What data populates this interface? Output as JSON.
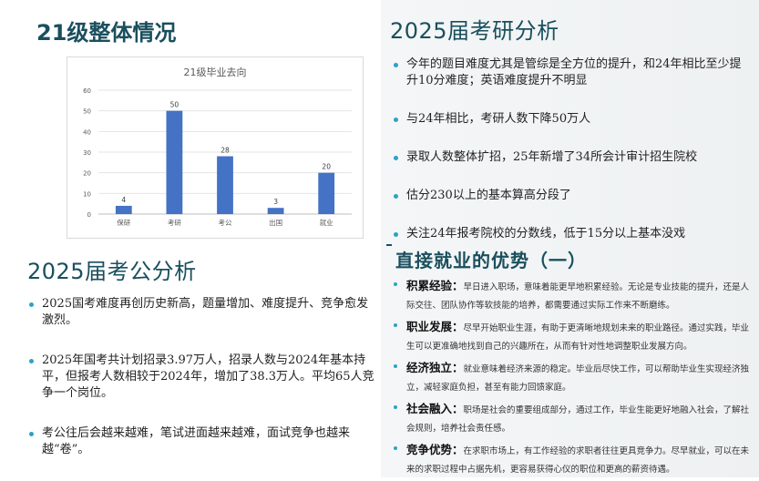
{
  "left": {
    "title": "21级整体情况",
    "chart_data": {
      "type": "bar",
      "title": "21级毕业去向",
      "categories": [
        "保研",
        "考研",
        "考公",
        "出国",
        "就业"
      ],
      "values": [
        4,
        50,
        28,
        3,
        20
      ],
      "ylim": [
        0,
        60
      ],
      "yticks": [
        0,
        10,
        20,
        30,
        40,
        50,
        60
      ],
      "grid": true,
      "color": "#4472c4"
    },
    "kaogong": {
      "title": "2025届考公分析",
      "items": [
        "2025国考难度再创历史新高，题量增加、难度提升、竞争愈发激烈。",
        "2025年国考共计划招录3.97万人，招录人数与2024年基本持平，但报考人数相较于2024年，增加了38.3万人。平均65人竞争一个岗位。",
        "考公往后会越来越难，笔试进面越来越难，面试竞争也越来越“卷”。"
      ]
    }
  },
  "right": {
    "kaoyan": {
      "title": "2025届考研分析",
      "items": [
        "今年的题目难度尤其是管综是全方位的提升，和24年相比至少提升10分难度；英语难度提升不明显",
        "与24年相比，考研人数下降50万人",
        "录取人数整体扩招，25年新增了34所会计审计招生院校",
        "估分230以上的基本算高分段了",
        "关注24年报考院校的分数线，低于15分以上基本没戏"
      ]
    },
    "jiuye": {
      "title": "直接就业的优势（一）",
      "items": [
        {
          "term": "积累经验：",
          "desc": "早日进入职场，意味着能更早地积累经验。无论是专业技能的提升，还是人际交往、团队协作等软技能的培养，都需要通过实际工作来不断磨练。"
        },
        {
          "term": "职业发展：",
          "desc": "尽早开始职业生涯，有助于更清晰地规划未来的职业路径。通过实践，毕业生可以更准确地找到自己的兴趣所在，从而有针对性地调整职业发展方向。"
        },
        {
          "term": "经济独立：",
          "desc": "就业意味着经济来源的稳定。毕业后尽快工作，可以帮助毕业生实现经济独立，减轻家庭负担，甚至有能力回馈家庭。"
        },
        {
          "term": "社会融入：",
          "desc": "职场是社会的重要组成部分，通过工作，毕业生能更好地融入社会，了解社会规则，培养社会责任感。"
        },
        {
          "term": "竞争优势：",
          "desc": "在求职市场上，有工作经验的求职者往往更具竞争力。尽早就业，可以在未来的求职过程中占据先机，更容易获得心仪的职位和更高的薪资待遇。"
        }
      ]
    }
  }
}
